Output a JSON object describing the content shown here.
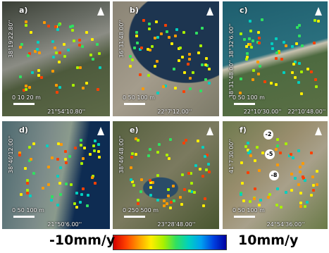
{
  "panels": [
    {
      "label": "a)",
      "lat": [
        "38°19'22.80''"
      ],
      "lon": [
        "21°54'10.80''"
      ],
      "scale": "0 10 20 m"
    },
    {
      "label": "b)",
      "lat": [
        "36°31'48.00''"
      ],
      "lon": [
        "22°7'12.00''"
      ],
      "scale": "0 50 100 m"
    },
    {
      "label": "c)",
      "lat": [
        "38°32'6.00''",
        "38°31'48.00''"
      ],
      "lon": [
        "22°10'30.00''",
        "22°10'48.00''"
      ],
      "scale": "0 50 100 m"
    },
    {
      "label": "d)",
      "lat": [
        "38°40'12.00''"
      ],
      "lon": [
        "21°50'6.00''"
      ],
      "scale": "0 50 100 m"
    },
    {
      "label": "e)",
      "lat": [
        "38°46'48.00''"
      ],
      "lon": [
        "23°28'48.00''"
      ],
      "scale": "0 250 500 m"
    },
    {
      "label": "f)",
      "lat": [
        "41°7'30.00''"
      ],
      "lon": [
        "24°54'36.00''"
      ],
      "scale": "0 50 100 m"
    }
  ],
  "markers": [
    "-2",
    "-5",
    "-8"
  ],
  "colorbar": {
    "min_label": "-10mm/y",
    "max_label": "10mm/y"
  }
}
